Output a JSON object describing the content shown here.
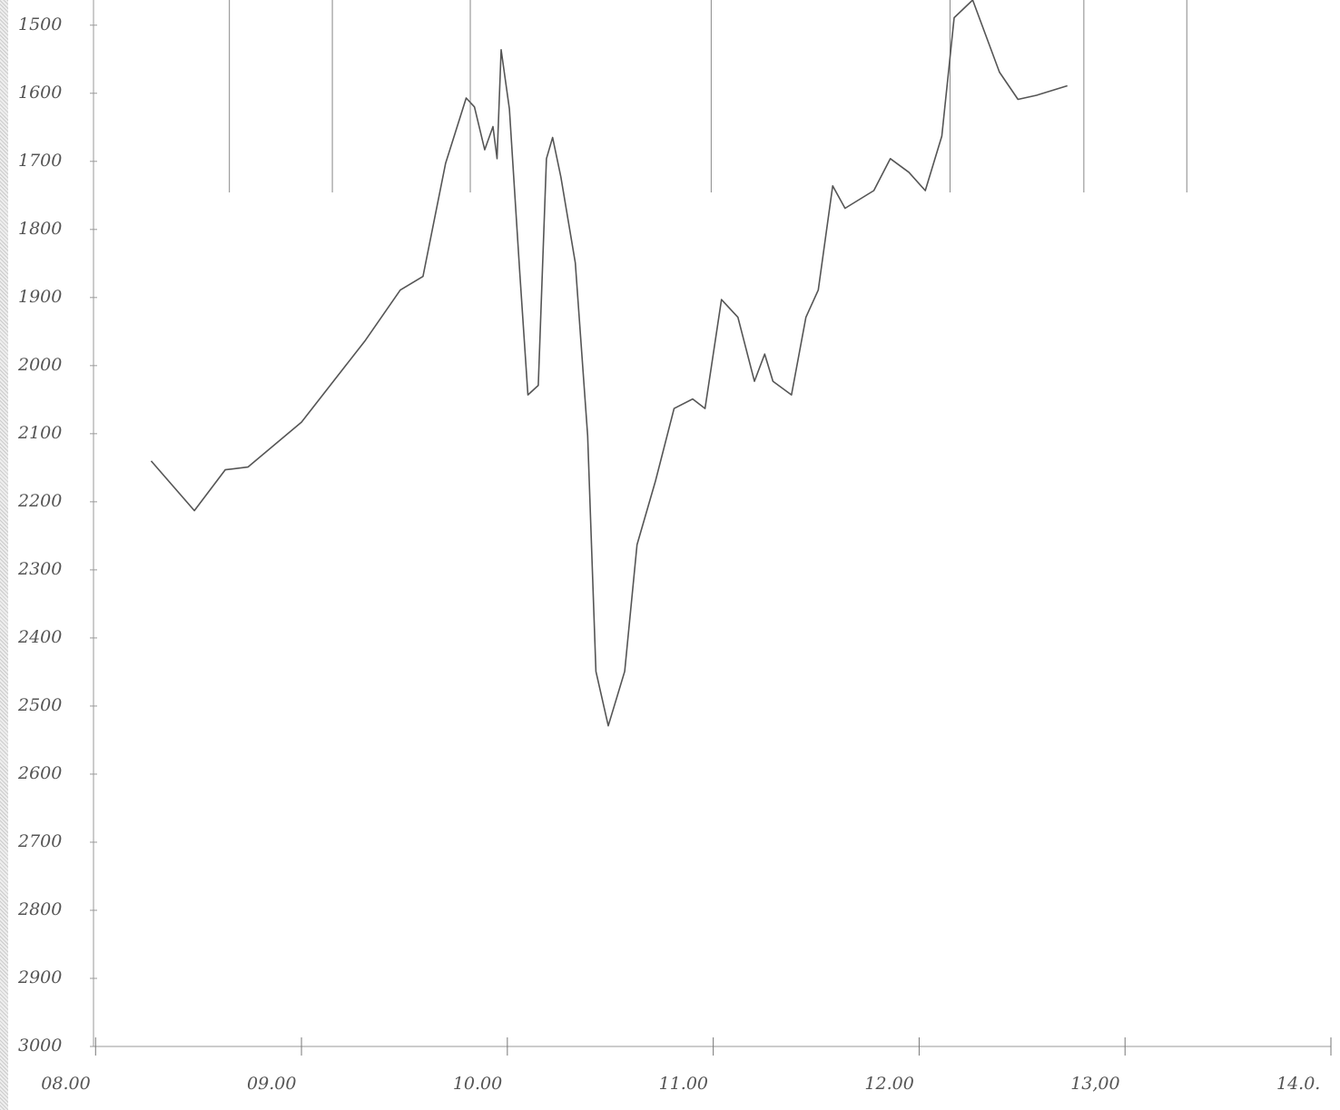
{
  "chart_data": {
    "type": "line",
    "x": [
      8.27,
      8.48,
      8.63,
      8.74,
      9.0,
      9.31,
      9.48,
      9.59,
      9.7,
      9.8,
      9.84,
      9.89,
      9.93,
      9.95,
      9.97,
      10.01,
      10.06,
      10.1,
      10.15,
      10.19,
      10.22,
      10.26,
      10.33,
      10.39,
      10.43,
      10.49,
      10.57,
      10.63,
      10.72,
      10.81,
      10.9,
      10.96,
      11.04,
      11.12,
      11.2,
      11.25,
      11.29,
      11.38,
      11.45,
      11.51,
      11.58,
      11.64,
      11.78,
      11.86,
      11.95,
      12.03,
      12.11,
      12.17,
      12.26,
      12.39,
      12.48,
      12.57,
      12.72
    ],
    "values": [
      2140,
      2213,
      2153,
      2149,
      2083,
      1963,
      1889,
      1869,
      1703,
      1607,
      1620,
      1683,
      1649,
      1696,
      1536,
      1623,
      1863,
      2043,
      2029,
      1696,
      1665,
      1723,
      1849,
      2103,
      2449,
      2529,
      2449,
      2263,
      2169,
      2063,
      2049,
      2063,
      1903,
      1929,
      2023,
      1983,
      2023,
      2043,
      1929,
      1889,
      1736,
      1769,
      1743,
      1696,
      1716,
      1743,
      1663,
      1489,
      1463,
      1569,
      1609,
      1603,
      1589
    ],
    "color": "#555555",
    "xlim": [
      7.99,
      14.0
    ],
    "xticks": [
      {
        "value": 8,
        "label": "08.00"
      },
      {
        "value": 9,
        "label": "09.00"
      },
      {
        "value": 10,
        "label": "10.00"
      },
      {
        "value": 11,
        "label": "11.00"
      },
      {
        "value": 12,
        "label": "12.00"
      },
      {
        "value": 13,
        "label": "13,00"
      },
      {
        "value": 14,
        "label": "14.0."
      }
    ],
    "ylim": [
      3000,
      1463
    ],
    "yticks": [
      1500,
      1600,
      1700,
      1800,
      1900,
      2000,
      2100,
      2200,
      2300,
      2400,
      2500,
      2600,
      2700,
      2800,
      2900,
      3000
    ],
    "markers": [
      8.65,
      9.15,
      9.82,
      10.99,
      12.15,
      12.8,
      13.3
    ]
  }
}
